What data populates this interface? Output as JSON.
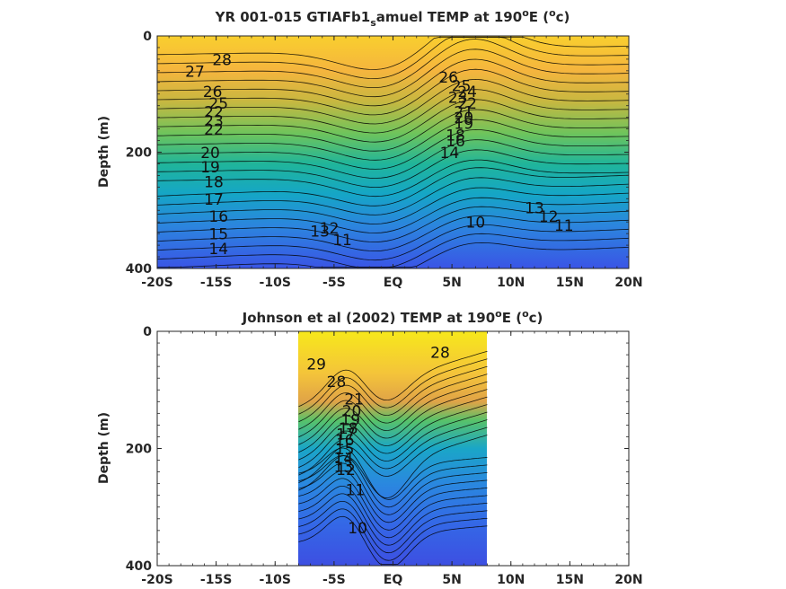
{
  "chart_data": [
    {
      "type": "contour",
      "title_main": "YR 001-015 GTIAFb1",
      "title_sub": "s",
      "title_rest": "amuel TEMP at 190",
      "title_deg": "o",
      "title_E": "E (",
      "title_unit_sup": "o",
      "title_unit": "c)",
      "ylabel": "Depth (m)",
      "xlabel": "",
      "x_ticks": [
        "-20S",
        "-15S",
        "-10S",
        "-5S",
        "EQ",
        "5N",
        "10N",
        "15N",
        "20N"
      ],
      "y_ticks": [
        "0",
        "200",
        "400"
      ],
      "xlim": [
        -20,
        20
      ],
      "ylim": [
        0,
        400
      ],
      "data_extent": [
        -20,
        20
      ],
      "colormap": "parula",
      "contour_labels": [
        {
          "text": "28",
          "x": -14.5,
          "y": 50
        },
        {
          "text": "27",
          "x": -16.8,
          "y": 70
        },
        {
          "text": "26",
          "x": -15.3,
          "y": 105
        },
        {
          "text": "25",
          "x": -14.8,
          "y": 125
        },
        {
          "text": "22",
          "x": -15.2,
          "y": 140
        },
        {
          "text": "23",
          "x": -15.2,
          "y": 155
        },
        {
          "text": "22",
          "x": -15.2,
          "y": 170
        },
        {
          "text": "20",
          "x": -15.5,
          "y": 210
        },
        {
          "text": "19",
          "x": -15.5,
          "y": 235
        },
        {
          "text": "18",
          "x": -15.2,
          "y": 260
        },
        {
          "text": "17",
          "x": -15.2,
          "y": 290
        },
        {
          "text": "16",
          "x": -14.8,
          "y": 320
        },
        {
          "text": "15",
          "x": -14.8,
          "y": 350
        },
        {
          "text": "14",
          "x": -14.8,
          "y": 375
        },
        {
          "text": "13",
          "x": -6.2,
          "y": 345
        },
        {
          "text": "12",
          "x": -5.4,
          "y": 340
        },
        {
          "text": "11",
          "x": -4.3,
          "y": 360
        },
        {
          "text": "26",
          "x": 4.7,
          "y": 80
        },
        {
          "text": "25",
          "x": 5.8,
          "y": 95
        },
        {
          "text": "24",
          "x": 6.3,
          "y": 105
        },
        {
          "text": "23",
          "x": 5.5,
          "y": 115
        },
        {
          "text": "22",
          "x": 6.3,
          "y": 125
        },
        {
          "text": "21",
          "x": 6.0,
          "y": 140
        },
        {
          "text": "20",
          "x": 6.0,
          "y": 150
        },
        {
          "text": "19",
          "x": 6.0,
          "y": 160
        },
        {
          "text": "18",
          "x": 5.3,
          "y": 180
        },
        {
          "text": "16",
          "x": 5.3,
          "y": 190
        },
        {
          "text": "14",
          "x": 4.8,
          "y": 210
        },
        {
          "text": "10",
          "x": 7.0,
          "y": 330
        },
        {
          "text": "13",
          "x": 12.0,
          "y": 305
        },
        {
          "text": "12",
          "x": 13.2,
          "y": 320
        },
        {
          "text": "11",
          "x": 14.5,
          "y": 335
        }
      ]
    },
    {
      "type": "contour",
      "title_main": "Johnson et al (2002) TEMP at 190",
      "title_deg": "o",
      "title_E": "E (",
      "title_unit_sup": "o",
      "title_unit": "c)",
      "ylabel": "Depth (m)",
      "xlabel": "",
      "x_ticks": [
        "-20S",
        "-15S",
        "-10S",
        "-5S",
        "EQ",
        "5N",
        "10N",
        "15N",
        "20N"
      ],
      "y_ticks": [
        "0",
        "200",
        "400"
      ],
      "xlim": [
        -20,
        20
      ],
      "ylim": [
        0,
        400
      ],
      "data_extent": [
        -8,
        8
      ],
      "colormap": "parula",
      "contour_labels": [
        {
          "text": "29",
          "x": -6.5,
          "y": 65
        },
        {
          "text": "28",
          "x": -4.8,
          "y": 95
        },
        {
          "text": "28",
          "x": 4.0,
          "y": 45
        },
        {
          "text": "21",
          "x": -3.3,
          "y": 125
        },
        {
          "text": "20",
          "x": -3.5,
          "y": 145
        },
        {
          "text": "19",
          "x": -3.6,
          "y": 160
        },
        {
          "text": "18",
          "x": -3.8,
          "y": 175
        },
        {
          "text": "17",
          "x": -4.0,
          "y": 185
        },
        {
          "text": "16",
          "x": -4.1,
          "y": 195
        },
        {
          "text": "15",
          "x": -4.1,
          "y": 210
        },
        {
          "text": "14",
          "x": -4.2,
          "y": 225
        },
        {
          "text": "13",
          "x": -4.2,
          "y": 240
        },
        {
          "text": "12",
          "x": -4.0,
          "y": 245
        },
        {
          "text": "11",
          "x": -3.2,
          "y": 280
        },
        {
          "text": "10",
          "x": -3.0,
          "y": 345
        }
      ]
    }
  ]
}
